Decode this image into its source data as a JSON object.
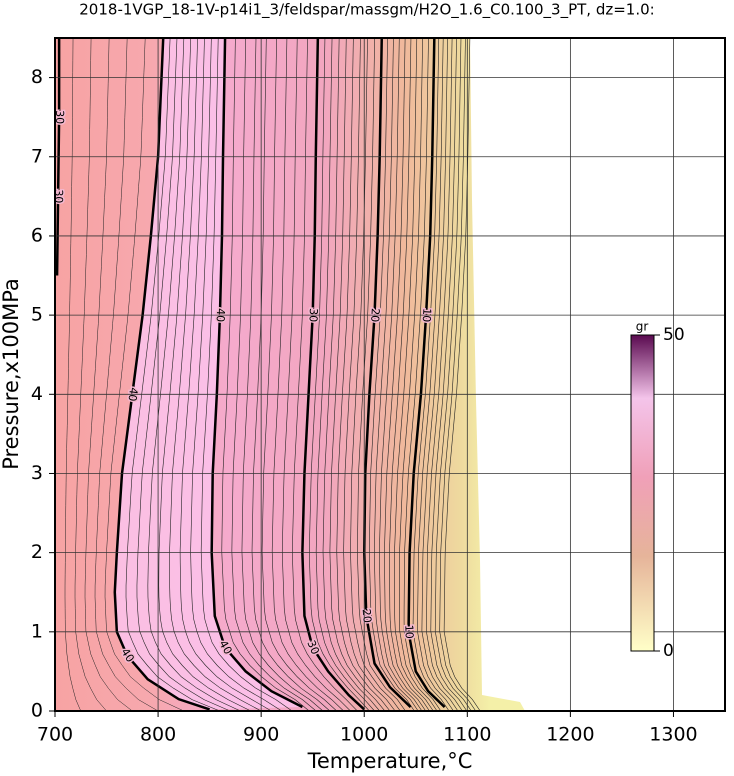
{
  "chart_data": {
    "type": "contour",
    "title": "2018-1VGP_18-1V-p14i1_3/feldspar/massgm/H2O_1.6_C0.100_3_PT, dz=1.0:",
    "x_label": "Temperature,°C",
    "y_label": "Pressure,x100MPa",
    "xlim": [
      700,
      1350
    ],
    "ylim": [
      0,
      8.5
    ],
    "xticks": [
      700,
      800,
      900,
      1000,
      1100,
      1200,
      1300
    ],
    "yticks": [
      0,
      1,
      2,
      3,
      4,
      5,
      6,
      7,
      8
    ],
    "grid": true,
    "contours": [
      {
        "level": 30,
        "x": [
          704,
          704,
          703,
          702
        ],
        "y": [
          8.5,
          7.5,
          6.5,
          5.5
        ]
      },
      {
        "level": 40,
        "x": [
          805,
          800,
          793,
          785,
          775,
          765,
          760,
          758,
          760,
          770,
          790,
          820,
          850
        ],
        "y": [
          8.5,
          7,
          6,
          5,
          4,
          3,
          2,
          1.5,
          1,
          0.7,
          0.4,
          0.15,
          0.02
        ]
      },
      {
        "level": 40,
        "x": [
          865,
          863,
          862,
          860,
          857,
          853,
          852,
          855,
          865,
          885,
          910,
          940
        ],
        "y": [
          8.5,
          7,
          6,
          5,
          4,
          3,
          2,
          1.2,
          0.8,
          0.5,
          0.25,
          0.05
        ]
      },
      {
        "level": 30,
        "x": [
          955,
          953,
          952,
          950,
          946,
          942,
          940,
          942,
          950,
          965,
          985,
          1000
        ],
        "y": [
          8.5,
          7,
          6,
          5,
          4,
          3,
          2,
          1.2,
          0.8,
          0.5,
          0.2,
          0.02
        ]
      },
      {
        "level": 20,
        "x": [
          1017,
          1015,
          1013,
          1010,
          1005,
          1001,
          1000,
          1002,
          1010,
          1025,
          1045
        ],
        "y": [
          8.5,
          7,
          6,
          5,
          4,
          3,
          2,
          1.2,
          0.6,
          0.3,
          0.05
        ]
      },
      {
        "level": 10,
        "x": [
          1068,
          1066,
          1064,
          1060,
          1055,
          1048,
          1044,
          1043,
          1050,
          1062,
          1078
        ],
        "y": [
          8.5,
          7,
          6,
          5,
          4,
          3,
          2,
          1,
          0.5,
          0.25,
          0.05
        ]
      }
    ],
    "colorbar": {
      "label": "gr",
      "lim": [
        0,
        50
      ],
      "ticks": [
        0,
        50
      ]
    }
  }
}
